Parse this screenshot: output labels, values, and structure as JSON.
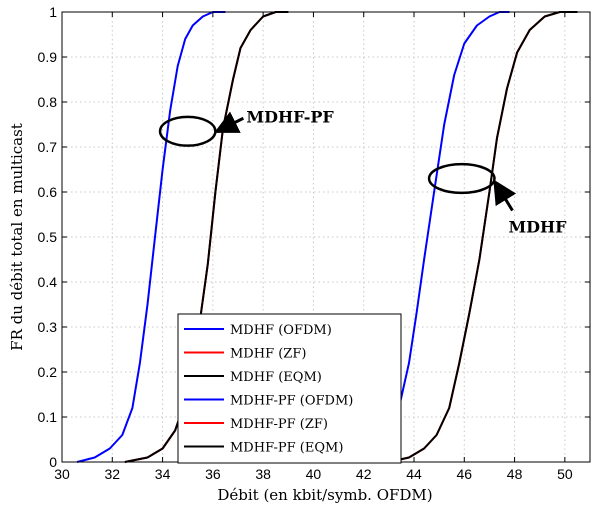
{
  "chart_data": {
    "type": "line",
    "xlabel": "Débit (en kbit/symb. OFDM)",
    "ylabel": "FR du débit total en multicast",
    "xlim": [
      30,
      51
    ],
    "ylim": [
      0,
      1
    ],
    "xticks": [
      "30",
      "32",
      "34",
      "36",
      "38",
      "40",
      "42",
      "44",
      "46",
      "48",
      "50"
    ],
    "yticks": [
      "0",
      "0.1",
      "0.2",
      "0.3",
      "0.4",
      "0.5",
      "0.6",
      "0.7",
      "0.8",
      "0.9",
      "1"
    ],
    "grid": true,
    "legend_position": "bottom-left",
    "colors": {
      "ofdm": "#0000ff",
      "zf": "#ff0000",
      "eqm": "#000000",
      "ellipse": "#000000"
    },
    "series": [
      {
        "name": "MDHF (OFDM)",
        "color": "#0000ff",
        "x": [
          41.3,
          42.1,
          42.6,
          43.0,
          43.4,
          43.8,
          44.1,
          44.4,
          44.8,
          45.2,
          45.6,
          46.0,
          46.5,
          47.0,
          47.4,
          47.8
        ],
        "y": [
          0,
          0.01,
          0.03,
          0.06,
          0.12,
          0.22,
          0.33,
          0.45,
          0.6,
          0.75,
          0.86,
          0.93,
          0.97,
          0.99,
          1.0,
          1.0
        ]
      },
      {
        "name": "MDHF (ZF)",
        "color": "#ff0000",
        "x": [
          43.0,
          43.8,
          44.4,
          44.9,
          45.4,
          45.8,
          46.2,
          46.6,
          47.0,
          47.3,
          47.7,
          48.1,
          48.6,
          49.2,
          49.8,
          50.5
        ],
        "y": [
          0,
          0.01,
          0.03,
          0.06,
          0.12,
          0.22,
          0.33,
          0.45,
          0.6,
          0.72,
          0.83,
          0.91,
          0.96,
          0.99,
          1.0,
          1.0
        ]
      },
      {
        "name": "MDHF (EQM)",
        "color": "#000000",
        "x": [
          43.0,
          43.8,
          44.4,
          44.9,
          45.4,
          45.8,
          46.2,
          46.6,
          47.0,
          47.3,
          47.7,
          48.1,
          48.6,
          49.2,
          49.8,
          50.5
        ],
        "y": [
          0,
          0.01,
          0.03,
          0.06,
          0.12,
          0.22,
          0.33,
          0.45,
          0.6,
          0.72,
          0.83,
          0.91,
          0.96,
          0.99,
          1.0,
          1.0
        ]
      },
      {
        "name": "MDHF-PF (OFDM)",
        "color": "#0000ff",
        "x": [
          30.6,
          31.3,
          31.9,
          32.4,
          32.8,
          33.1,
          33.4,
          33.7,
          34.0,
          34.3,
          34.6,
          34.9,
          35.2,
          35.6,
          36.0,
          36.5
        ],
        "y": [
          0,
          0.01,
          0.03,
          0.06,
          0.12,
          0.22,
          0.35,
          0.5,
          0.65,
          0.78,
          0.88,
          0.94,
          0.97,
          0.99,
          1.0,
          1.0
        ]
      },
      {
        "name": "MDHF-PF (ZF)",
        "color": "#ff0000",
        "x": [
          32.5,
          33.4,
          34.0,
          34.5,
          35.0,
          35.4,
          35.8,
          36.1,
          36.4,
          36.8,
          37.1,
          37.5,
          38.0,
          38.5,
          39.0
        ],
        "y": [
          0,
          0.01,
          0.03,
          0.07,
          0.15,
          0.28,
          0.44,
          0.6,
          0.74,
          0.85,
          0.92,
          0.96,
          0.99,
          1.0,
          1.0
        ]
      },
      {
        "name": "MDHF-PF (EQM)",
        "color": "#000000",
        "x": [
          32.5,
          33.4,
          34.0,
          34.5,
          35.0,
          35.4,
          35.8,
          36.1,
          36.4,
          36.8,
          37.1,
          37.5,
          38.0,
          38.5,
          39.0
        ],
        "y": [
          0,
          0.01,
          0.03,
          0.07,
          0.15,
          0.28,
          0.44,
          0.6,
          0.74,
          0.85,
          0.92,
          0.96,
          0.99,
          1.0,
          1.0
        ]
      }
    ],
    "annotations": [
      {
        "text": "MDHF-PF",
        "ellipse_center": [
          35.0,
          0.735
        ],
        "ellipse_rx": 1.1,
        "ellipse_ry": 0.032
      },
      {
        "text": "MDHF",
        "ellipse_center": [
          45.9,
          0.63
        ],
        "ellipse_rx": 1.3,
        "ellipse_ry": 0.032
      }
    ]
  }
}
